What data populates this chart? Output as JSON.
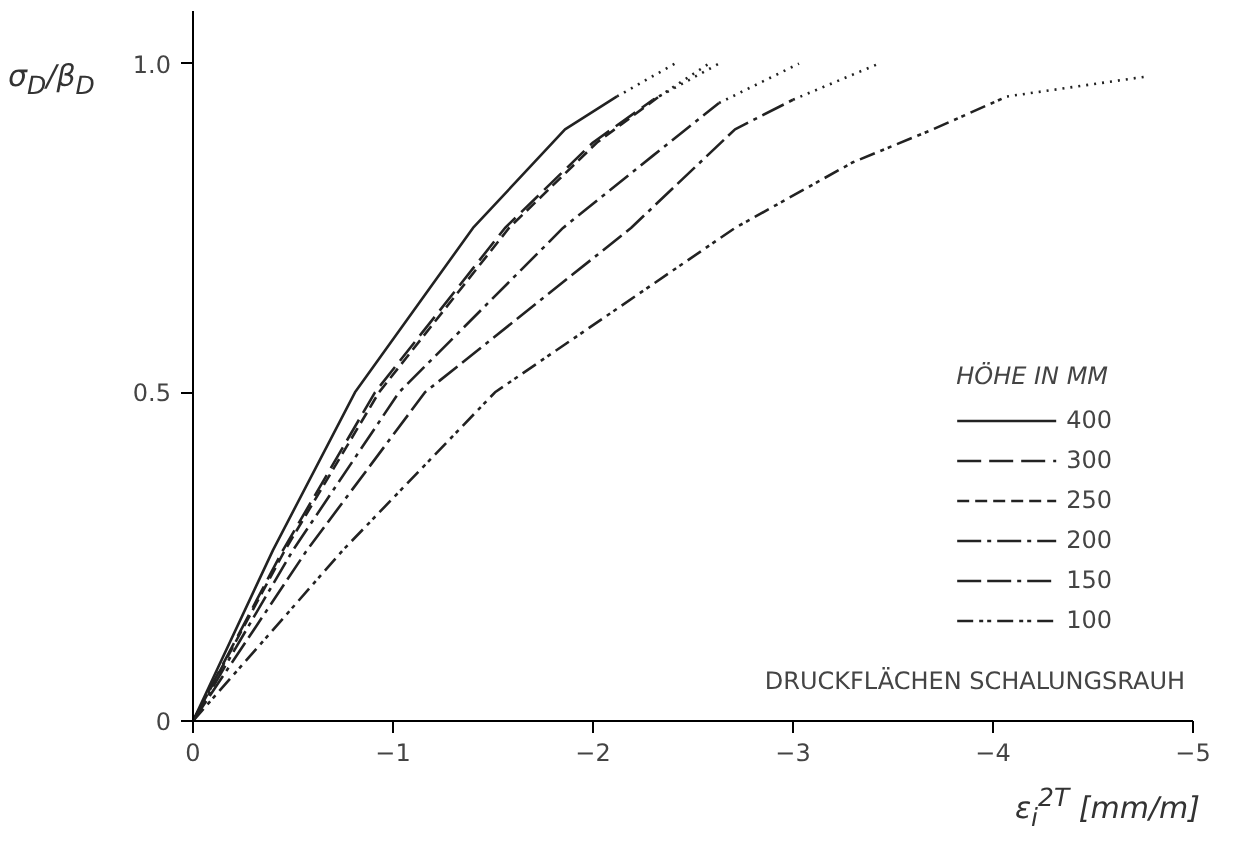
{
  "chart_data": {
    "type": "line",
    "xlabel": "ε$_{i}$$^{2T}$ [mm/m]",
    "ylabel": "σ$_{D}$/β$_{D}$",
    "legend_title": "HÖHE IN MM",
    "annotations": [
      "DRUCKFLÄCHEN SCHALUNGSRAUH"
    ],
    "xlim": [
      0,
      -5
    ],
    "ylim": [
      0,
      1.08
    ],
    "xticks": [
      0,
      -1,
      -2,
      -3,
      -4,
      -5
    ],
    "yticks": [
      0,
      0.5,
      {
        "value": 1.0,
        "label": "1.0"
      }
    ],
    "grid": false,
    "legend": "bottom right",
    "marker": "none",
    "series": [
      {
        "name": "400",
        "color": "#222222",
        "line_style": "solid",
        "x": [
          0,
          -0.4,
          -0.81,
          -1.4,
          -1.86,
          -2.12
        ],
        "values": [
          0,
          0.26,
          0.5,
          0.75,
          0.9,
          0.95
        ]
      },
      {
        "name": "300",
        "color": "#222222",
        "line_style": "longdash",
        "x": [
          0,
          -0.45,
          -0.91,
          -1.56,
          -2.0,
          -2.3
        ],
        "values": [
          0,
          0.26,
          0.5,
          0.75,
          0.88,
          0.945
        ]
      },
      {
        "name": "250",
        "color": "#222222",
        "line_style": "dashed",
        "x": [
          0,
          -0.46,
          -0.93,
          -1.58,
          -2.02,
          -2.33
        ],
        "values": [
          0,
          0.26,
          0.5,
          0.75,
          0.88,
          0.95
        ]
      },
      {
        "name": "200",
        "color": "#222222",
        "line_style": "dashdot",
        "x": [
          0,
          -0.5,
          -1.03,
          -1.85,
          -2.3,
          -2.63
        ],
        "values": [
          0,
          0.26,
          0.5,
          0.75,
          0.86,
          0.94
        ]
      },
      {
        "name": "150",
        "color": "#222222",
        "line_style": "longdashdot",
        "x": [
          0,
          -0.57,
          -1.16,
          -2.19,
          -2.71,
          -3.0
        ],
        "values": [
          0,
          0.26,
          0.5,
          0.75,
          0.9,
          0.945
        ]
      },
      {
        "name": "100",
        "color": "#222222",
        "line_style": "dashdotdot",
        "x": [
          0,
          -0.75,
          -1.51,
          -2.71,
          -3.3,
          -3.7,
          -4.07
        ],
        "values": [
          0,
          0.26,
          0.5,
          0.75,
          0.85,
          0.9,
          0.95
        ]
      },
      {
        "color": "#222222",
        "line_style": "dotted",
        "x": [
          -2.12,
          -2.41,
          null,
          -2.3,
          -2.63,
          null,
          -2.33,
          -2.58,
          null,
          -2.63,
          -3.03,
          null,
          -3.0,
          -3.43,
          null,
          -4.07,
          -4.76
        ],
        "values": [
          0.95,
          1.0,
          null,
          0.945,
          1.0,
          null,
          0.95,
          1.0,
          null,
          0.94,
          1.0,
          null,
          0.945,
          1.0,
          null,
          0.95,
          0.98
        ]
      }
    ]
  }
}
